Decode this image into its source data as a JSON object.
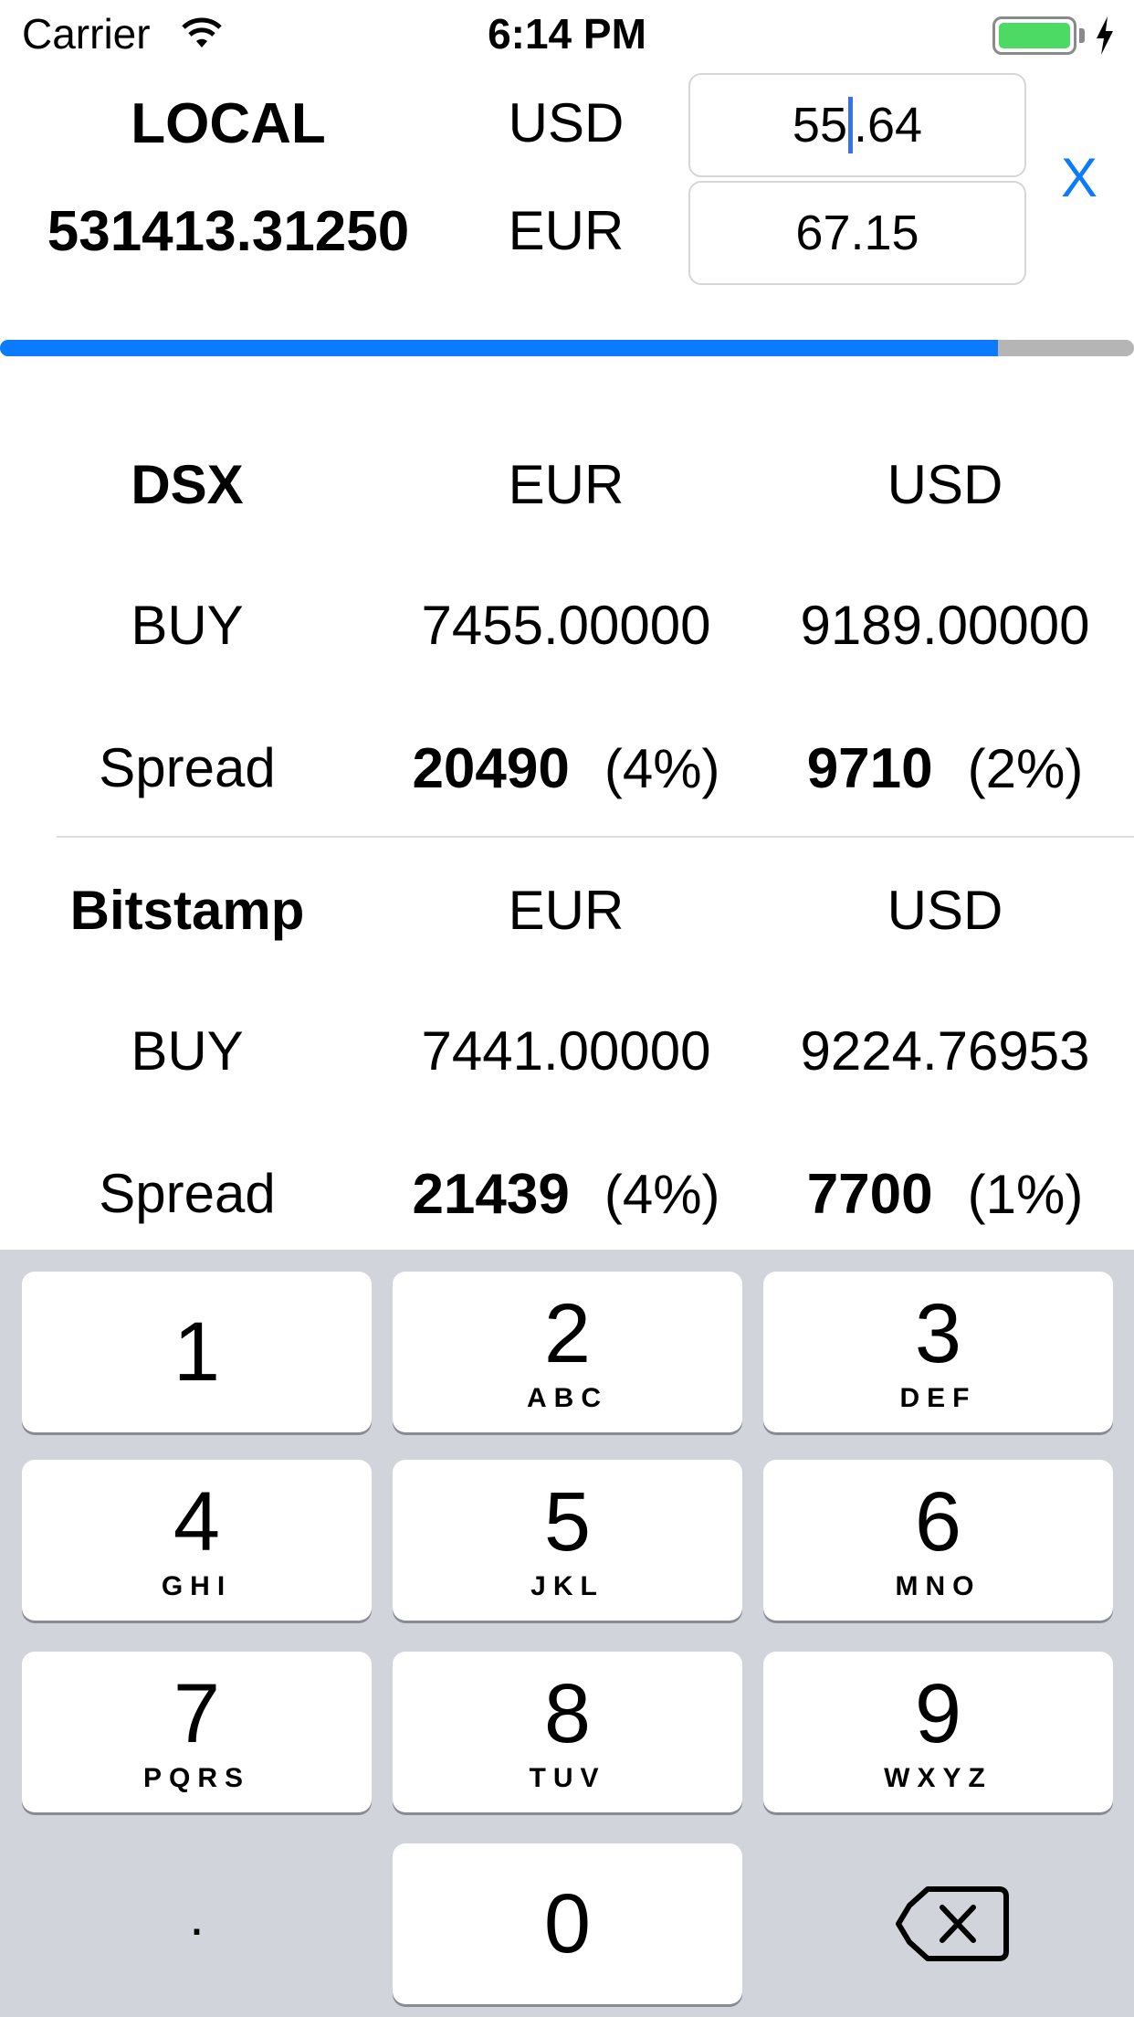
{
  "status_bar": {
    "carrier": "Carrier",
    "time": "6:14 PM"
  },
  "converter": {
    "local_label": "LOCAL",
    "local_value": "531413.31250",
    "usd_label": "USD",
    "eur_label": "EUR",
    "usd_value_before_caret": "55",
    "usd_value_after_caret": ".64",
    "eur_value": "67.15",
    "clear_label": "X",
    "progress_fraction": 0.88
  },
  "exchanges": [
    {
      "name": "DSX",
      "col_eur": "EUR",
      "col_usd": "USD",
      "buy_label": "BUY",
      "buy_eur": "7455.00000",
      "buy_usd": "9189.00000",
      "spread_label": "Spread",
      "spread_eur": "20490",
      "spread_eur_pct": "(4%)",
      "spread_usd": "9710",
      "spread_usd_pct": "(2%)"
    },
    {
      "name": "Bitstamp",
      "col_eur": "EUR",
      "col_usd": "USD",
      "buy_label": "BUY",
      "buy_eur": "7441.00000",
      "buy_usd": "9224.76953",
      "spread_label": "Spread",
      "spread_eur": "21439",
      "spread_eur_pct": "(4%)",
      "spread_usd": "7700",
      "spread_usd_pct": "(1%)"
    }
  ],
  "keypad": {
    "keys": [
      {
        "num": "1",
        "letters": ""
      },
      {
        "num": "2",
        "letters": "ABC"
      },
      {
        "num": "3",
        "letters": "DEF"
      },
      {
        "num": "4",
        "letters": "GHI"
      },
      {
        "num": "5",
        "letters": "JKL"
      },
      {
        "num": "6",
        "letters": "MNO"
      },
      {
        "num": "7",
        "letters": "PQRS"
      },
      {
        "num": "8",
        "letters": "TUV"
      },
      {
        "num": "9",
        "letters": "WXYZ"
      },
      {
        "num": "0",
        "letters": ""
      }
    ],
    "decimal": "."
  },
  "colors": {
    "accent": "#0a7aff",
    "battery": "#4cd964",
    "keypad_bg": "#d1d4db"
  }
}
